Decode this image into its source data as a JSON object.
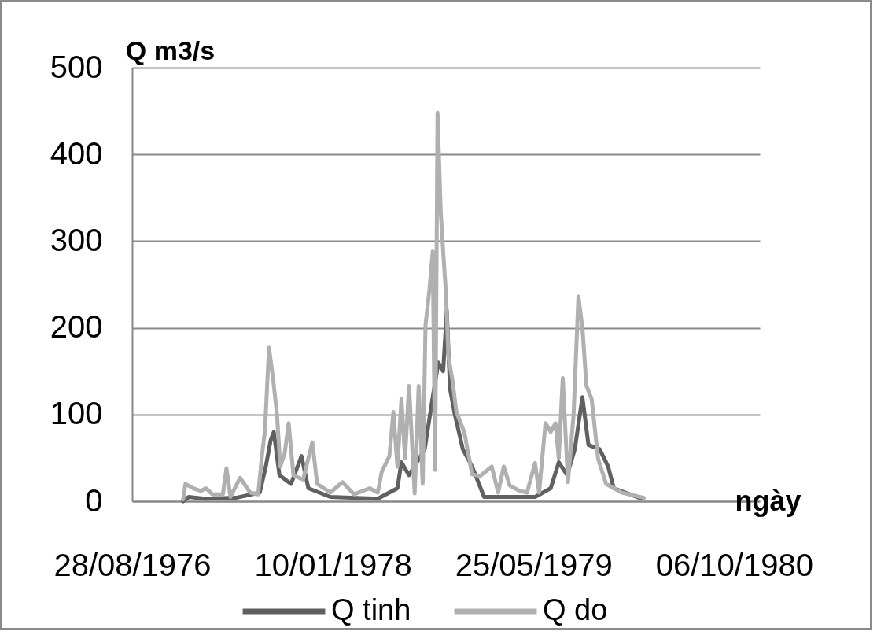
{
  "chart_data": {
    "type": "line",
    "xlabel": "ngày",
    "ylabel": "Q m3/s",
    "xlim": [
      "1976-08-28",
      "1980-12-09"
    ],
    "xticks": [
      {
        "value": "1976-08-28",
        "label": "28/08/1976"
      },
      {
        "value": "1978-01-10",
        "label": "10/01/1978"
      },
      {
        "value": "1979-05-25",
        "label": "25/05/1979"
      },
      {
        "value": "1980-10-06",
        "label": "06/10/1980"
      }
    ],
    "ylim": [
      0,
      500
    ],
    "yticks": [
      0,
      100,
      200,
      300,
      400,
      500
    ],
    "grid": "y",
    "legend": "bottom",
    "marker": "none",
    "line_style": "solid",
    "series": [
      {
        "name": "Q tinh",
        "color": "#606060",
        "x": [
          "1977-01-02",
          "1977-01-16",
          "1977-02-24",
          "1977-05-14",
          "1977-07-12",
          "1977-07-27",
          "1977-08-08",
          "1977-08-16",
          "1977-08-30",
          "1977-09-28",
          "1977-10-24",
          "1977-11-10",
          "1978-01-04",
          "1978-05-02",
          "1978-06-20",
          "1978-06-30",
          "1978-07-19",
          "1978-08-27",
          "1978-09-16",
          "1978-09-30",
          "1978-10-12",
          "1978-10-21",
          "1978-10-29",
          "1978-11-10",
          "1978-11-30",
          "1978-12-23",
          "1979-01-22",
          "1979-05-29",
          "1979-07-07",
          "1979-07-27",
          "1979-08-17",
          "1979-09-05",
          "1979-09-24",
          "1979-10-09",
          "1979-11-06",
          "1979-11-27",
          "1979-12-11",
          "1980-02-18"
        ],
        "values": [
          0,
          5,
          3,
          4,
          10,
          40,
          70,
          80,
          30,
          20,
          52,
          15,
          5,
          3,
          15,
          45,
          30,
          60,
          120,
          160,
          150,
          220,
          130,
          100,
          60,
          40,
          5,
          5,
          15,
          45,
          30,
          60,
          120,
          65,
          60,
          40,
          15,
          3
        ]
      },
      {
        "name": "Q do",
        "color": "#b0b0b0",
        "x": [
          "1977-01-02",
          "1977-01-08",
          "1977-01-26",
          "1977-02-15",
          "1977-02-28",
          "1977-03-16",
          "1977-04-11",
          "1977-04-20",
          "1977-04-30",
          "1977-05-24",
          "1977-06-18",
          "1977-07-08",
          "1977-07-18",
          "1977-07-25",
          "1977-08-04",
          "1977-08-14",
          "1977-08-24",
          "1977-09-01",
          "1977-09-12",
          "1977-09-22",
          "1977-10-04",
          "1977-10-28",
          "1977-11-20",
          "1977-12-02",
          "1978-01-04",
          "1978-02-03",
          "1978-03-04",
          "1978-04-12",
          "1978-05-02",
          "1978-05-12",
          "1978-05-31",
          "1978-06-10",
          "1978-06-20",
          "1978-06-30",
          "1978-07-09",
          "1978-07-19",
          "1978-08-02",
          "1978-08-12",
          "1978-08-22",
          "1978-08-29",
          "1978-09-08",
          "1978-09-16",
          "1978-09-22",
          "1978-09-28",
          "1978-10-06",
          "1978-10-12",
          "1978-10-19",
          "1978-10-25",
          "1978-11-04",
          "1978-11-14",
          "1978-12-04",
          "1978-12-23",
          "1979-01-12",
          "1979-02-10",
          "1979-02-26",
          "1979-03-12",
          "1979-03-27",
          "1979-04-20",
          "1979-05-09",
          "1979-05-29",
          "1979-06-08",
          "1979-06-24",
          "1979-07-07",
          "1979-07-19",
          "1979-07-27",
          "1979-08-06",
          "1979-08-19",
          "1979-09-02",
          "1979-09-14",
          "1979-09-24",
          "1979-10-04",
          "1979-10-17",
          "1979-11-02",
          "1979-11-22",
          "1979-12-31",
          "1980-02-24"
        ],
        "values": [
          2,
          20,
          15,
          12,
          15,
          8,
          8,
          38,
          5,
          27,
          10,
          8,
          55,
          82,
          177,
          142,
          100,
          40,
          55,
          90,
          30,
          25,
          68,
          20,
          10,
          22,
          8,
          15,
          10,
          34,
          52,
          103,
          40,
          118,
          50,
          133,
          9,
          133,
          20,
          203,
          245,
          288,
          36,
          448,
          333,
          288,
          240,
          167,
          140,
          103,
          79,
          31,
          29,
          40,
          10,
          40,
          18,
          12,
          10,
          44,
          10,
          90,
          80,
          90,
          50,
          142,
          22,
          100,
          236,
          200,
          133,
          118,
          49,
          20,
          10,
          4
        ]
      }
    ]
  }
}
